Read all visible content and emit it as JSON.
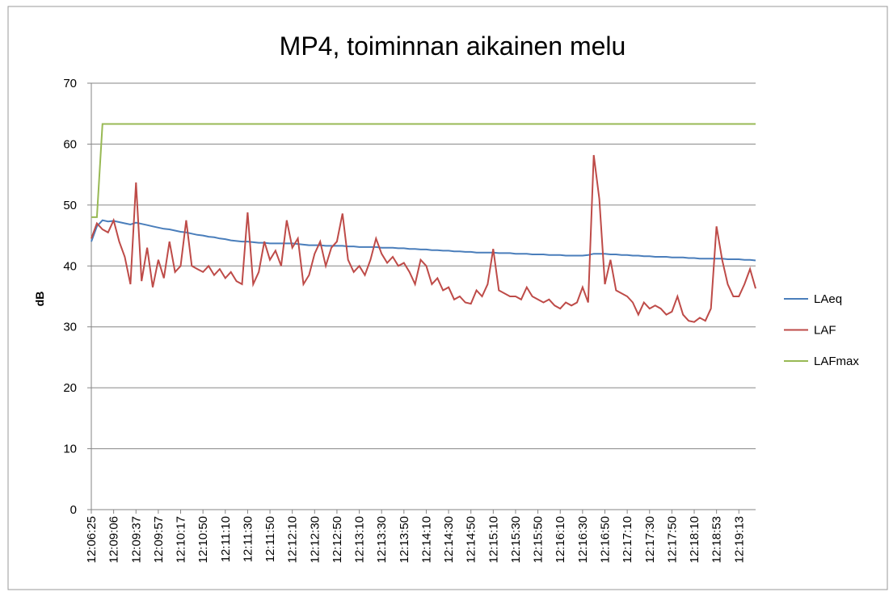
{
  "chart_data": {
    "type": "line",
    "title": "MP4, toiminnan aikainen melu",
    "y_label": "dB",
    "categories": [
      "12:06:25",
      null,
      null,
      null,
      "12:09:06",
      null,
      null,
      null,
      "12:09:37",
      null,
      null,
      null,
      "12:09:57",
      null,
      null,
      null,
      "12:10:17",
      null,
      null,
      null,
      "12:10:50",
      null,
      null,
      null,
      "12:11:10",
      null,
      null,
      null,
      "12:11:30",
      null,
      null,
      null,
      "12:11:50",
      null,
      null,
      null,
      "12:12:10",
      null,
      null,
      null,
      "12:12:30",
      null,
      null,
      null,
      "12:12:50",
      null,
      null,
      null,
      "12:13:10",
      null,
      null,
      null,
      "12:13:30",
      null,
      null,
      null,
      "12:13:50",
      null,
      null,
      null,
      "12:14:10",
      null,
      null,
      null,
      "12:14:30",
      null,
      null,
      null,
      "12:14:50",
      null,
      null,
      null,
      "12:15:10",
      null,
      null,
      null,
      "12:15:30",
      null,
      null,
      null,
      "12:15:50",
      null,
      null,
      null,
      "12:16:10",
      null,
      null,
      null,
      "12:16:30",
      null,
      null,
      null,
      "12:16:50",
      null,
      null,
      null,
      "12:17:10",
      null,
      null,
      null,
      "12:17:30",
      null,
      null,
      null,
      "12:17:50",
      null,
      null,
      null,
      "12:18:10",
      null,
      null,
      null,
      "12:18:53",
      null,
      null,
      null,
      "12:19:13",
      null,
      null,
      null
    ],
    "series": [
      {
        "name": "LAeq",
        "color": "#4a7ebb",
        "values": [
          44,
          46.5,
          47.5,
          47.3,
          47.4,
          47.2,
          47,
          46.8,
          47.1,
          46.9,
          46.7,
          46.5,
          46.3,
          46.1,
          46,
          45.8,
          45.6,
          45.5,
          45.3,
          45.1,
          45,
          44.8,
          44.7,
          44.5,
          44.4,
          44.2,
          44.1,
          44,
          44,
          43.9,
          43.8,
          43.8,
          43.7,
          43.7,
          43.7,
          43.7,
          43.7,
          43.6,
          43.5,
          43.4,
          43.4,
          43.4,
          43.3,
          43.3,
          43.3,
          43.3,
          43.2,
          43.2,
          43.1,
          43.1,
          43.1,
          43.1,
          43,
          43,
          43,
          42.9,
          42.9,
          42.8,
          42.8,
          42.7,
          42.7,
          42.6,
          42.6,
          42.5,
          42.5,
          42.4,
          42.4,
          42.3,
          42.3,
          42.2,
          42.2,
          42.2,
          42.2,
          42.1,
          42.1,
          42.1,
          42,
          42,
          42,
          41.9,
          41.9,
          41.9,
          41.8,
          41.8,
          41.8,
          41.7,
          41.7,
          41.7,
          41.7,
          41.8,
          42,
          42,
          42,
          41.9,
          41.9,
          41.8,
          41.8,
          41.7,
          41.7,
          41.6,
          41.6,
          41.5,
          41.5,
          41.5,
          41.4,
          41.4,
          41.4,
          41.3,
          41.3,
          41.2,
          41.2,
          41.2,
          41.2,
          41.2,
          41.1,
          41.1,
          41.1,
          41,
          41,
          40.9
        ]
      },
      {
        "name": "LAF",
        "color": "#be4b48",
        "values": [
          44.5,
          47,
          46,
          45.5,
          47.5,
          44,
          41.5,
          37,
          53.7,
          37.5,
          43,
          36.5,
          41,
          38,
          44,
          39,
          40,
          47.5,
          40,
          39.5,
          39,
          40,
          38.5,
          39.5,
          38,
          39,
          37.5,
          37,
          48.8,
          37,
          39,
          44,
          41,
          42.5,
          40,
          47.5,
          43,
          44.5,
          37,
          38.5,
          42,
          44,
          40,
          43,
          44,
          48.6,
          41,
          39,
          40,
          38.5,
          41,
          44.5,
          42,
          40.5,
          41.5,
          40,
          40.5,
          39,
          37,
          41,
          40,
          37,
          38,
          36,
          36.5,
          34.5,
          35,
          34,
          33.8,
          36,
          35,
          37,
          42.8,
          36,
          35.5,
          35,
          35,
          34.5,
          36.5,
          35,
          34.5,
          34,
          34.5,
          33.5,
          33,
          34,
          33.5,
          34,
          36.5,
          34,
          58.2,
          51,
          37,
          41,
          36,
          35.5,
          35,
          34,
          32,
          34,
          33,
          33.5,
          33,
          32,
          32.5,
          35,
          32,
          31,
          30.8,
          31.5,
          31,
          33,
          46.5,
          41,
          37,
          35,
          35,
          37,
          39.5,
          36.3
        ]
      },
      {
        "name": "LAFmax",
        "color": "#98b954",
        "values": [
          48,
          48,
          63.3,
          63.3,
          63.3,
          63.3,
          63.3,
          63.3,
          63.3,
          63.3,
          63.3,
          63.3,
          63.3,
          63.3,
          63.3,
          63.3,
          63.3,
          63.3,
          63.3,
          63.3,
          63.3,
          63.3,
          63.3,
          63.3,
          63.3,
          63.3,
          63.3,
          63.3,
          63.3,
          63.3,
          63.3,
          63.3,
          63.3,
          63.3,
          63.3,
          63.3,
          63.3,
          63.3,
          63.3,
          63.3,
          63.3,
          63.3,
          63.3,
          63.3,
          63.3,
          63.3,
          63.3,
          63.3,
          63.3,
          63.3,
          63.3,
          63.3,
          63.3,
          63.3,
          63.3,
          63.3,
          63.3,
          63.3,
          63.3,
          63.3,
          63.3,
          63.3,
          63.3,
          63.3,
          63.3,
          63.3,
          63.3,
          63.3,
          63.3,
          63.3,
          63.3,
          63.3,
          63.3,
          63.3,
          63.3,
          63.3,
          63.3,
          63.3,
          63.3,
          63.3,
          63.3,
          63.3,
          63.3,
          63.3,
          63.3,
          63.3,
          63.3,
          63.3,
          63.3,
          63.3,
          63.3,
          63.3,
          63.3,
          63.3,
          63.3,
          63.3,
          63.3,
          63.3,
          63.3,
          63.3,
          63.3,
          63.3,
          63.3,
          63.3,
          63.3,
          63.3,
          63.3,
          63.3,
          63.3,
          63.3,
          63.3,
          63.3,
          63.3,
          63.3,
          63.3,
          63.3,
          63.3,
          63.3,
          63.3,
          63.3
        ]
      }
    ],
    "ylim": [
      0,
      70
    ],
    "yticks": [
      0,
      10,
      20,
      30,
      40,
      50,
      60,
      70
    ],
    "grid": true,
    "legend": "right"
  }
}
